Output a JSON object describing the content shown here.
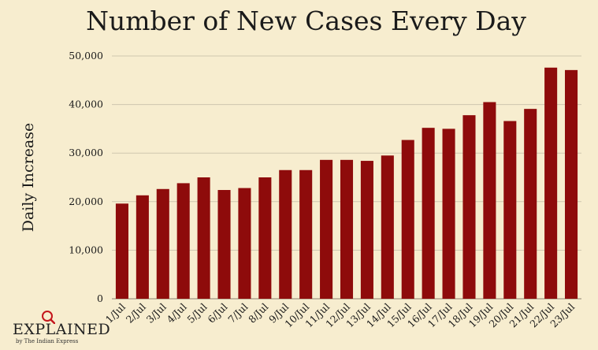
{
  "colors": {
    "background": "#F7EDCF",
    "bar": "#8E0B0B",
    "grid": "#CFC6AF",
    "text": "#1A1A1A",
    "brand_accent": "#C4161C"
  },
  "chart_data": {
    "type": "bar",
    "title": "Number of New Cases Every Day",
    "xlabel": "",
    "ylabel": "Daily Increase",
    "ylim": [
      0,
      50000
    ],
    "yticks": [
      0,
      10000,
      20000,
      30000,
      40000,
      50000
    ],
    "ytick_labels": [
      "0",
      "10,000",
      "20,000",
      "30,000",
      "40,000",
      "50,000"
    ],
    "grid": true,
    "categories": [
      "1/Jul",
      "2/Jul",
      "3/Jul",
      "4/Jul",
      "5/Jul",
      "6/Jul",
      "7/Jul",
      "8/Jul",
      "9/Jul",
      "10/Jul",
      "11/Jul",
      "12/Jul",
      "13/Jul",
      "14/Jul",
      "15/Jul",
      "16/Jul",
      "17/Jul",
      "18/Jul",
      "19/Jul",
      "20/Jul",
      "21/Jul",
      "22/Jul",
      "23/Jul"
    ],
    "values": [
      19600,
      21300,
      22600,
      23800,
      25000,
      22400,
      22800,
      25000,
      26500,
      26500,
      28600,
      28600,
      28400,
      29500,
      32700,
      35200,
      35000,
      37800,
      40500,
      36600,
      39100,
      47600,
      47100
    ]
  },
  "branding": {
    "logo_text": "EXPLAINED",
    "logo_sub": "by The Indian Express",
    "logo_icon": "magnifier-icon"
  }
}
